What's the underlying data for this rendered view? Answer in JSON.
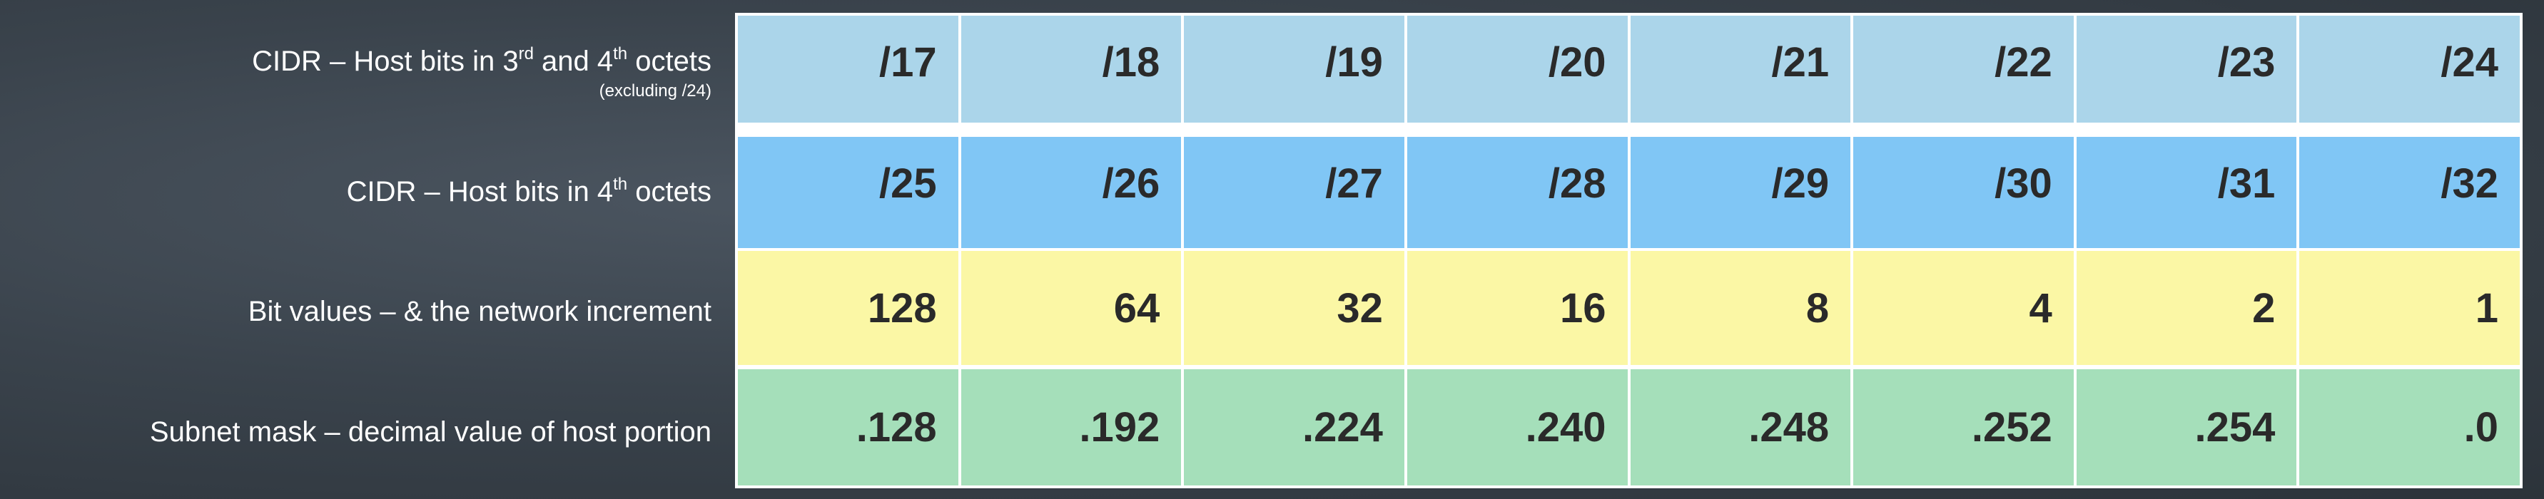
{
  "rows": [
    {
      "label": "CIDR – Host bits in 3",
      "label_sup": "rd",
      "label_mid": " and 4",
      "label_sup2": "th",
      "label_end": " octets",
      "sublabel": "(excluding /24)",
      "values": [
        "/17",
        "/18",
        "/19",
        "/20",
        "/21",
        "/22",
        "/23",
        "/24"
      ]
    },
    {
      "label": "CIDR – Host bits in 4",
      "label_sup": "th",
      "label_end": " octets",
      "values": [
        "/25",
        "/26",
        "/27",
        "/28",
        "/29",
        "/30",
        "/31",
        "/32"
      ]
    },
    {
      "label": "Bit values – & the network increment",
      "values": [
        "128",
        "64",
        "32",
        "16",
        "8",
        "4",
        "2",
        "1"
      ]
    },
    {
      "label": "Subnet mask – decimal value of host portion",
      "values": [
        ".128",
        ".192",
        ".224",
        ".240",
        ".248",
        ".252",
        ".254",
        ".0"
      ]
    }
  ],
  "colors": {
    "row_cidr_3rd_4th": "#abd5ea",
    "row_cidr_4th": "#80c6f5",
    "row_bit_values": "#fbf7a5",
    "row_subnet_mask": "#a5dfba",
    "label_text": "#ffffff",
    "cell_text": "#2a2a2a"
  }
}
